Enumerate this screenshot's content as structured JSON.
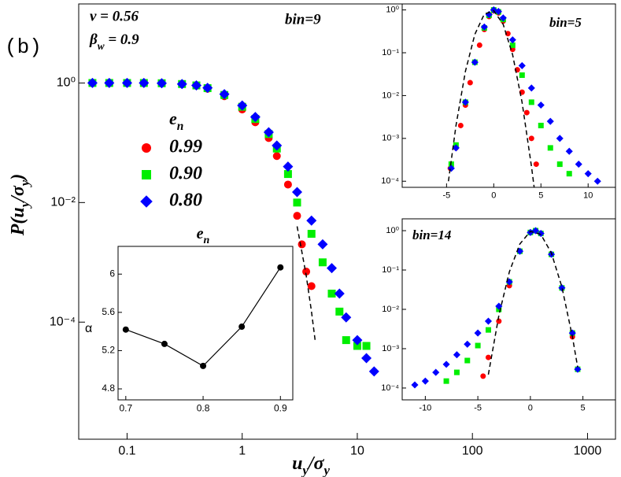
{
  "chart_data": [
    {
      "type": "scatter",
      "panel_label": "(b)",
      "nu_label": "ν = 0.56",
      "beta_label": [
        "β",
        "w",
        " = 0.9"
      ],
      "title": "bin=9",
      "xlabel": [
        "u",
        "y",
        "/σ",
        "y"
      ],
      "ylabel": [
        "P(u",
        "y",
        "/σ",
        "y",
        ")"
      ],
      "xscale": "log",
      "yscale": "log",
      "xlim": [
        0.038,
        1750
      ],
      "ylim": [
        1.1e-06,
        21
      ],
      "xticks": [
        0.1,
        1,
        10,
        100,
        1000
      ],
      "yticks": [
        {
          "value": 1,
          "label": "10⁰"
        },
        {
          "value": 0.01,
          "label": "10⁻²"
        },
        {
          "value": 0.0001,
          "label": "10⁻⁴"
        }
      ],
      "legend_title": [
        "e",
        "n"
      ],
      "series": [
        {
          "name": "0.99",
          "color": "#ff0000",
          "marker": "circle",
          "x": [
            0.05,
            0.07,
            0.1,
            0.14,
            0.2,
            0.3,
            0.4,
            0.5,
            0.7,
            1,
            1.3,
            1.7,
            2,
            2.5,
            3,
            3.3,
            3.6,
            4
          ],
          "values": [
            1,
            1,
            1,
            1,
            0.99,
            0.96,
            0.9,
            0.8,
            0.6,
            0.36,
            0.22,
            0.12,
            0.06,
            0.02,
            0.006,
            0.002,
            0.0007,
            0.0004
          ]
        },
        {
          "name": "0.90",
          "color": "#00ee00",
          "marker": "square",
          "x": [
            0.05,
            0.07,
            0.1,
            0.14,
            0.2,
            0.3,
            0.4,
            0.5,
            0.7,
            1,
            1.3,
            1.7,
            2,
            2.5,
            3,
            4,
            5,
            6,
            7,
            8,
            10,
            12
          ],
          "values": [
            1,
            1,
            1,
            1,
            0.99,
            0.96,
            0.91,
            0.82,
            0.63,
            0.4,
            0.25,
            0.14,
            0.08,
            0.03,
            0.01,
            0.003,
            0.001,
            0.0003,
            0.00015,
            5e-05,
            4e-05,
            4e-05
          ]
        },
        {
          "name": "0.80",
          "color": "#0000ff",
          "marker": "diamond",
          "x": [
            0.05,
            0.07,
            0.1,
            0.14,
            0.2,
            0.3,
            0.4,
            0.5,
            0.7,
            1,
            1.3,
            1.7,
            2,
            2.5,
            3,
            4,
            5,
            6,
            7,
            8,
            10,
            12,
            14
          ],
          "values": [
            1,
            1,
            1,
            1,
            0.99,
            0.96,
            0.91,
            0.83,
            0.65,
            0.42,
            0.27,
            0.15,
            0.09,
            0.04,
            0.015,
            0.005,
            0.002,
            0.0008,
            0.0003,
            0.00012,
            5e-05,
            2.5e-05,
            1.5e-05
          ]
        }
      ],
      "fit_line": {
        "x": [
          3,
          3.3,
          3.6,
          4,
          4.3
        ],
        "values": [
          0.004,
          0.0015,
          0.0006,
          0.00015,
          5e-05
        ]
      }
    },
    {
      "type": "scatter",
      "title": "bin=5",
      "xscale": "linear",
      "yscale": "log",
      "xlim": [
        -9.7,
        12.9
      ],
      "ylim": [
        7.2e-05,
        1.38
      ],
      "xticks": [
        -5,
        0,
        5,
        10
      ],
      "yticks": [
        {
          "value": 1,
          "label": "10⁰"
        },
        {
          "value": 0.1,
          "label": "10⁻¹"
        },
        {
          "value": 0.01,
          "label": "10⁻²"
        },
        {
          "value": 0.001,
          "label": "10⁻³"
        },
        {
          "value": 0.0001,
          "label": "10⁻⁴"
        }
      ],
      "series": [
        {
          "color": "#ff0000",
          "marker": "circle",
          "x": [
            -4.6,
            -4,
            -3.5,
            -3,
            -2.5,
            -2,
            -1.5,
            -1,
            -0.5,
            0,
            0.5,
            1,
            1.5,
            2,
            2.5,
            3,
            3.5,
            4,
            4.5
          ],
          "values": [
            0.0002,
            0.0006,
            0.002,
            0.006,
            0.02,
            0.06,
            0.15,
            0.35,
            0.7,
            0.95,
            0.85,
            0.55,
            0.28,
            0.12,
            0.04,
            0.012,
            0.004,
            0.001,
            0.00025
          ]
        },
        {
          "color": "#00ee00",
          "marker": "square",
          "x": [
            -4.5,
            -4,
            -3,
            -2,
            -1,
            -0.5,
            0,
            0.5,
            1,
            2,
            3,
            4,
            5,
            6,
            7,
            8
          ],
          "values": [
            0.00025,
            0.0007,
            0.007,
            0.06,
            0.38,
            0.75,
            1,
            0.9,
            0.6,
            0.15,
            0.03,
            0.007,
            0.002,
            0.0006,
            0.00025,
            0.00015
          ]
        },
        {
          "color": "#0000ff",
          "marker": "diamond",
          "x": [
            -4.5,
            -4,
            -3,
            -2,
            -1,
            -0.5,
            0,
            0.5,
            1,
            2,
            3,
            4,
            5,
            6,
            7,
            8,
            9,
            10,
            11
          ],
          "values": [
            0.0002,
            0.0006,
            0.007,
            0.06,
            0.4,
            0.78,
            1,
            0.92,
            0.65,
            0.2,
            0.05,
            0.015,
            0.006,
            0.0025,
            0.001,
            0.0005,
            0.00025,
            0.00015,
            0.0001
          ]
        }
      ],
      "fit_line": {
        "x": [
          -4.8,
          -4,
          -3,
          -2,
          -1,
          0,
          1,
          2,
          3,
          4,
          4.4
        ],
        "values": [
          0.0001,
          0.002,
          0.037,
          0.27,
          0.8,
          0.96,
          0.46,
          0.09,
          0.007,
          0.00022,
          4.5e-05
        ]
      }
    },
    {
      "type": "scatter",
      "title": "bin=14",
      "xscale": "linear",
      "yscale": "log",
      "xlim": [
        -12.2,
        8.1
      ],
      "ylim": [
        5e-05,
        2
      ],
      "xticks": [
        -10,
        -5,
        0,
        5
      ],
      "yticks": [
        {
          "value": 1,
          "label": "10⁰"
        },
        {
          "value": 0.1,
          "label": "10⁻¹"
        },
        {
          "value": 0.01,
          "label": "10⁻²"
        },
        {
          "value": 0.001,
          "label": "10⁻³"
        },
        {
          "value": 0.0001,
          "label": "10⁻⁴"
        }
      ],
      "series": [
        {
          "color": "#ff0000",
          "marker": "circle",
          "x": [
            -4.5,
            -4,
            -3,
            -2,
            -1,
            0,
            0.5,
            1,
            2,
            3,
            4,
            4.5
          ],
          "values": [
            0.0002,
            0.0006,
            0.005,
            0.04,
            0.3,
            0.9,
            1,
            0.85,
            0.25,
            0.035,
            0.002,
            0.0003
          ]
        },
        {
          "color": "#00ee00",
          "marker": "square",
          "x": [
            -8,
            -7,
            -6,
            -5,
            -4,
            -3,
            -2,
            -1,
            0,
            0.5,
            1,
            2,
            3,
            4,
            4.5
          ],
          "values": [
            0.00015,
            0.00025,
            0.0005,
            0.0012,
            0.003,
            0.01,
            0.05,
            0.3,
            0.9,
            1,
            0.85,
            0.25,
            0.035,
            0.0025,
            0.0003
          ]
        },
        {
          "color": "#0000ff",
          "marker": "diamond",
          "x": [
            -11,
            -10,
            -9,
            -8,
            -7,
            -6,
            -5,
            -4,
            -3,
            -2,
            -1,
            0,
            0.5,
            1,
            2,
            3,
            4,
            4.5
          ],
          "values": [
            0.00012,
            0.00015,
            0.00025,
            0.0004,
            0.0007,
            0.0013,
            0.0025,
            0.005,
            0.012,
            0.05,
            0.3,
            0.9,
            1,
            0.85,
            0.25,
            0.035,
            0.0025,
            0.0003
          ]
        }
      ],
      "fit_line": {
        "x": [
          -4,
          -3,
          -2,
          -1,
          0,
          1,
          2,
          3,
          4,
          4.5
        ],
        "values": [
          0.00022,
          0.007,
          0.09,
          0.46,
          0.96,
          0.8,
          0.27,
          0.037,
          0.002,
          0.00034
        ]
      }
    },
    {
      "type": "line",
      "title": [
        "e",
        "n"
      ],
      "ylabel": "α",
      "color": "#000000",
      "x": [
        0.7,
        0.75,
        0.8,
        0.85,
        0.9
      ],
      "values": [
        5.42,
        5.27,
        5.04,
        5.45,
        6.07
      ],
      "xlim": [
        0.69,
        0.916
      ],
      "ylim": [
        4.685,
        6.29
      ],
      "xticks": [
        0.7,
        0.8,
        0.9
      ],
      "yticks": [
        4.8,
        5.2,
        5.6,
        6
      ]
    }
  ]
}
